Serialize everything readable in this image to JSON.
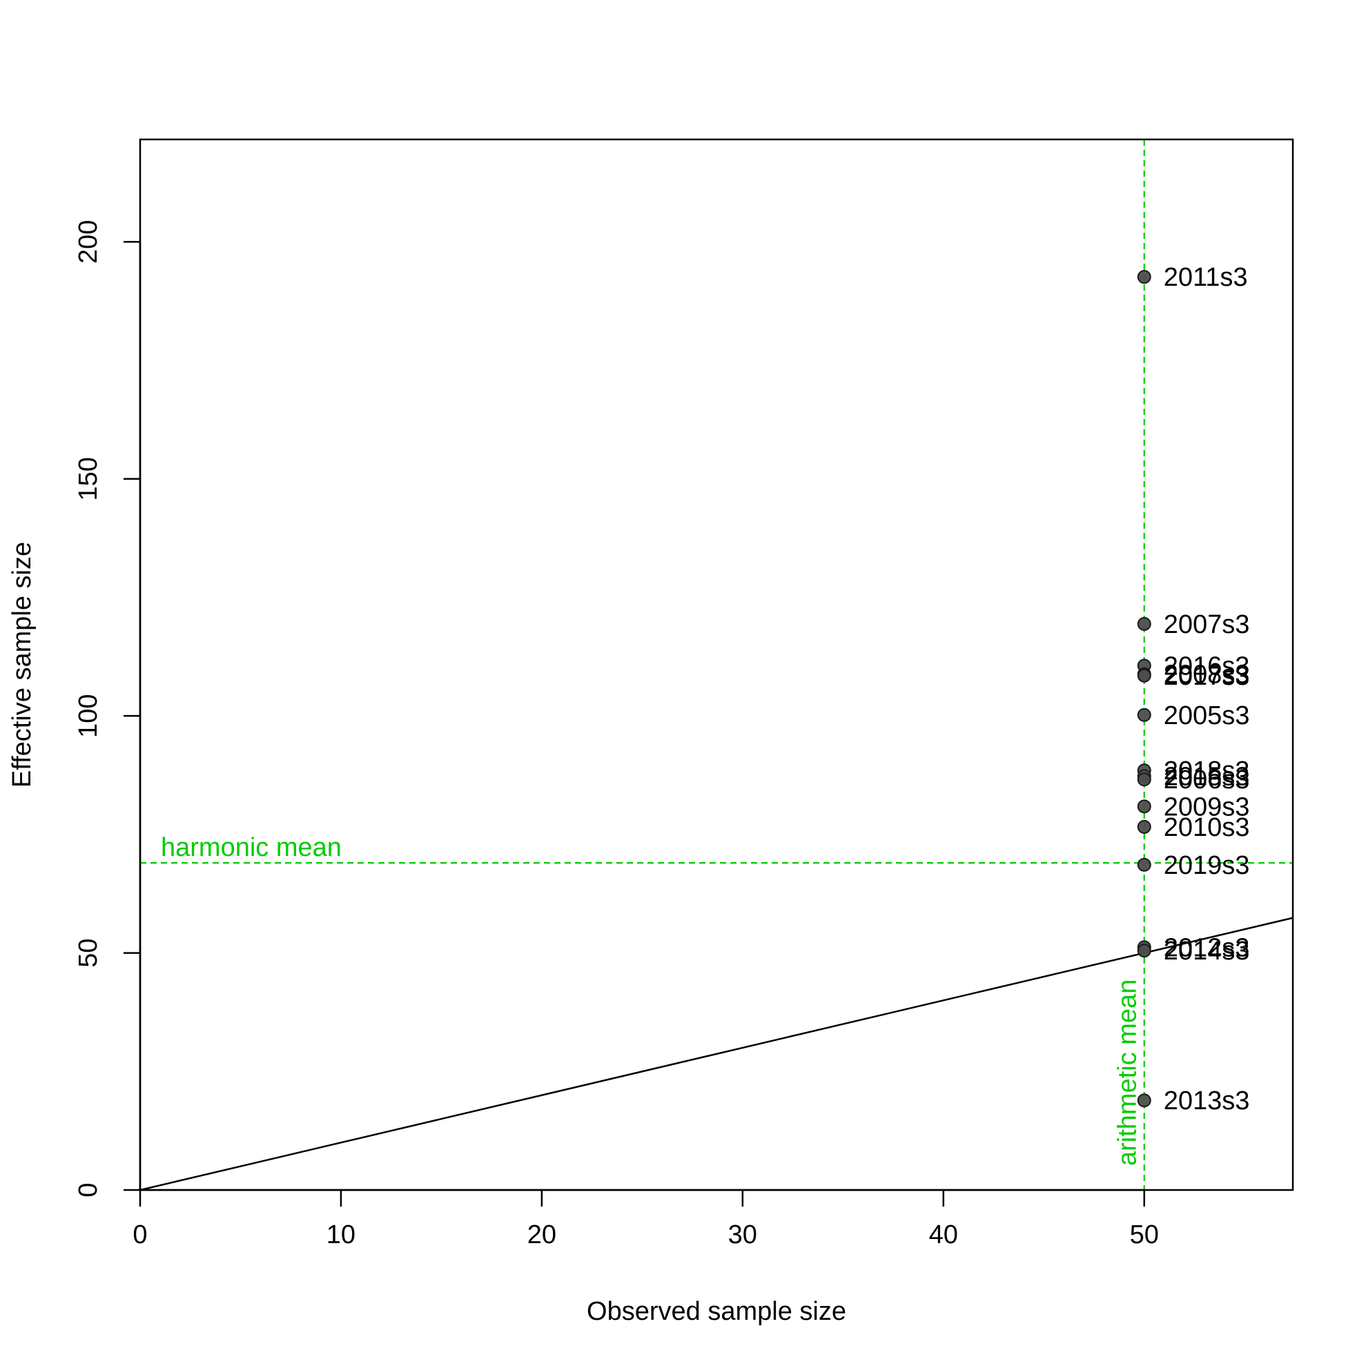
{
  "chart_data": {
    "type": "scatter",
    "title": "",
    "xlabel": "Observed sample size",
    "ylabel": "Effective sample size",
    "xlim": [
      0,
      57.4
    ],
    "ylim": [
      0,
      221.6
    ],
    "x_ticks": [
      0,
      10,
      20,
      30,
      40,
      50
    ],
    "y_ticks": [
      0,
      50,
      100,
      150,
      200
    ],
    "grid": false,
    "points": [
      {
        "label": "2011s3",
        "x": 50,
        "y": 192.6
      },
      {
        "label": "2007s3",
        "x": 50,
        "y": 119.4
      },
      {
        "label": "2016s3",
        "x": 50,
        "y": 110.6
      },
      {
        "label": "2008s3",
        "x": 50,
        "y": 108.8
      },
      {
        "label": "2017s3",
        "x": 50,
        "y": 108.5
      },
      {
        "label": "2005s3",
        "x": 50,
        "y": 100.2
      },
      {
        "label": "2018s3",
        "x": 50,
        "y": 88.5
      },
      {
        "label": "2015s3",
        "x": 50,
        "y": 87.3
      },
      {
        "label": "2006s3",
        "x": 50,
        "y": 86.6
      },
      {
        "label": "2009s3",
        "x": 50,
        "y": 80.9
      },
      {
        "label": "2010s3",
        "x": 50,
        "y": 76.6
      },
      {
        "label": "2019s3",
        "x": 50,
        "y": 68.6
      },
      {
        "label": "2012s3",
        "x": 50,
        "y": 51.2
      },
      {
        "label": "2014s3",
        "x": 50,
        "y": 50.5
      },
      {
        "label": "2013s3",
        "x": 50,
        "y": 18.9
      }
    ],
    "reference_lines": [
      {
        "type": "identity",
        "from": [
          0,
          0
        ],
        "to": [
          57.4,
          57.4
        ],
        "color": "#000000"
      },
      {
        "type": "horizontal",
        "label": "harmonic mean",
        "value": 69.0,
        "color": "#00cc00"
      },
      {
        "type": "vertical",
        "label": "arithmetic mean",
        "value": 50,
        "color": "#00cc00"
      }
    ],
    "colors": {
      "point_fill": "#4d4d4d",
      "point_stroke": "#1a1a1a",
      "mean_lines": "#00cc00"
    }
  }
}
